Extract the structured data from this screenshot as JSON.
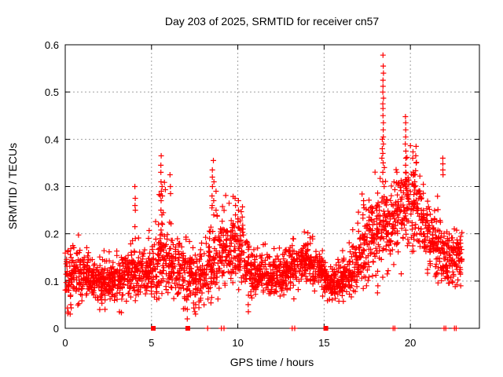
{
  "title": "Day 203 of 2025, SRMTID for receiver cn57",
  "chart_data": {
    "type": "scatter",
    "title": "Day 203 of 2025, SRMTID for receiver cn57",
    "xlabel": "GPS time / hours",
    "ylabel": "SRMTID / TECUs",
    "xlim": [
      0,
      24
    ],
    "ylim": [
      0,
      0.6
    ],
    "xticks": [
      0,
      5,
      10,
      15,
      20
    ],
    "yticks": [
      0,
      0.1,
      0.2,
      0.3,
      0.4,
      0.5,
      0.6
    ],
    "grid": true,
    "legend": "none",
    "marker": "plus",
    "marker_color": "#ff0000",
    "grid_color": "#a0a0a0",
    "axis_color": "#000000",
    "series_name": "SRMTID for receiver cn57",
    "x_data_range": [
      0,
      23.0
    ],
    "envelope_bins_format": [
      "bin_start_hour",
      "mean",
      "min",
      "max"
    ],
    "envelope_bins": [
      [
        0.0,
        0.105,
        0.03,
        0.17
      ],
      [
        0.5,
        0.115,
        0.05,
        0.2
      ],
      [
        1.0,
        0.11,
        0.05,
        0.18
      ],
      [
        1.5,
        0.105,
        0.04,
        0.17
      ],
      [
        2.0,
        0.1,
        0.035,
        0.165
      ],
      [
        2.5,
        0.105,
        0.05,
        0.165
      ],
      [
        3.0,
        0.115,
        0.03,
        0.2
      ],
      [
        3.5,
        0.12,
        0.06,
        0.2
      ],
      [
        4.0,
        0.12,
        0.05,
        0.2
      ],
      [
        4.5,
        0.115,
        0.05,
        0.19
      ],
      [
        5.0,
        0.135,
        0.06,
        0.28
      ],
      [
        5.5,
        0.15,
        0.07,
        0.31
      ],
      [
        6.0,
        0.14,
        0.06,
        0.28
      ],
      [
        6.5,
        0.12,
        0.04,
        0.22
      ],
      [
        7.0,
        0.11,
        0.015,
        0.2
      ],
      [
        7.5,
        0.11,
        0.03,
        0.19
      ],
      [
        8.0,
        0.125,
        0.05,
        0.24
      ],
      [
        8.5,
        0.15,
        0.06,
        0.3
      ],
      [
        9.0,
        0.16,
        0.07,
        0.3
      ],
      [
        9.5,
        0.17,
        0.08,
        0.28
      ],
      [
        10.0,
        0.17,
        0.05,
        0.28
      ],
      [
        10.5,
        0.12,
        0.03,
        0.2
      ],
      [
        11.0,
        0.115,
        0.06,
        0.19
      ],
      [
        11.5,
        0.11,
        0.055,
        0.18
      ],
      [
        12.0,
        0.11,
        0.05,
        0.175
      ],
      [
        12.5,
        0.12,
        0.06,
        0.19
      ],
      [
        13.0,
        0.13,
        0.06,
        0.2
      ],
      [
        13.5,
        0.14,
        0.07,
        0.21
      ],
      [
        14.0,
        0.135,
        0.07,
        0.205
      ],
      [
        14.5,
        0.125,
        0.065,
        0.19
      ],
      [
        15.0,
        0.1,
        0.05,
        0.16
      ],
      [
        15.5,
        0.095,
        0.05,
        0.15
      ],
      [
        16.0,
        0.11,
        0.06,
        0.18
      ],
      [
        16.5,
        0.14,
        0.07,
        0.25
      ],
      [
        17.0,
        0.17,
        0.08,
        0.3
      ],
      [
        17.5,
        0.2,
        0.1,
        0.35
      ],
      [
        18.0,
        0.22,
        0.075,
        0.33
      ],
      [
        18.5,
        0.22,
        0.1,
        0.36
      ],
      [
        19.0,
        0.24,
        0.1,
        0.38
      ],
      [
        19.5,
        0.27,
        0.13,
        0.4
      ],
      [
        20.0,
        0.27,
        0.14,
        0.42
      ],
      [
        20.5,
        0.22,
        0.12,
        0.35
      ],
      [
        21.0,
        0.19,
        0.11,
        0.3
      ],
      [
        21.5,
        0.16,
        0.09,
        0.28
      ],
      [
        22.0,
        0.15,
        0.08,
        0.26
      ],
      [
        22.5,
        0.16,
        0.09,
        0.26
      ]
    ],
    "points_per_bin": 55,
    "seed": 7,
    "feature_columns_format": [
      "hour",
      [
        "TECU values"
      ]
    ],
    "feature_columns": [
      [
        4.05,
        [
          0.19,
          0.215,
          0.25,
          0.26,
          0.275,
          0.3
        ]
      ],
      [
        5.55,
        [
          0.25,
          0.27,
          0.29,
          0.31,
          0.33,
          0.345,
          0.365
        ]
      ],
      [
        5.62,
        [
          0.22,
          0.24,
          0.28,
          0.3
        ]
      ],
      [
        6.08,
        [
          0.3,
          0.325
        ]
      ],
      [
        6.12,
        [
          0.285
        ]
      ],
      [
        8.52,
        [
          0.26,
          0.28,
          0.3,
          0.32,
          0.335
        ]
      ],
      [
        8.6,
        [
          0.24,
          0.27,
          0.31,
          0.355
        ]
      ],
      [
        8.72,
        [
          0.25,
          0.29
        ]
      ],
      [
        9.85,
        [
          0.24,
          0.26,
          0.275
        ]
      ],
      [
        10.05,
        [
          0.25,
          0.27
        ]
      ],
      [
        17.3,
        [
          0.255,
          0.27
        ]
      ],
      [
        18.35,
        [
          0.36,
          0.38,
          0.4
        ]
      ],
      [
        18.42,
        [
          0.31,
          0.33,
          0.35,
          0.37,
          0.39,
          0.405,
          0.42,
          0.435,
          0.45,
          0.465,
          0.475,
          0.487,
          0.5,
          0.512,
          0.525,
          0.54,
          0.555,
          0.578
        ]
      ],
      [
        18.48,
        [
          0.3,
          0.34
        ]
      ],
      [
        19.72,
        [
          0.3,
          0.315,
          0.33,
          0.345,
          0.36,
          0.375,
          0.39,
          0.405,
          0.42,
          0.435,
          0.448
        ]
      ],
      [
        20.15,
        [
          0.33,
          0.36
        ]
      ],
      [
        20.32,
        [
          0.35,
          0.365,
          0.385
        ]
      ],
      [
        21.9,
        [
          0.325,
          0.335,
          0.348,
          0.36
        ]
      ],
      [
        0.3,
        [
          0.03,
          0.05,
          0.07
        ]
      ],
      [
        2.3,
        [
          0.04,
          0.06
        ]
      ],
      [
        7.05,
        [
          0.02,
          0.04,
          0.06
        ]
      ],
      [
        7.55,
        [
          0.03,
          0.05
        ]
      ],
      [
        10.6,
        [
          0.035,
          0.05,
          0.07
        ]
      ],
      [
        15.45,
        [
          0.06,
          0.075
        ]
      ],
      [
        18.1,
        [
          0.075,
          0.09
        ]
      ]
    ],
    "zero_axis_marks": {
      "squares_hours": [
        5.1,
        7.1,
        15.1
      ],
      "tick_hours": [
        8.25,
        9.05,
        9.2,
        13.15,
        13.3,
        19.0,
        19.1,
        21.95,
        22.05,
        22.55,
        22.65
      ]
    }
  }
}
